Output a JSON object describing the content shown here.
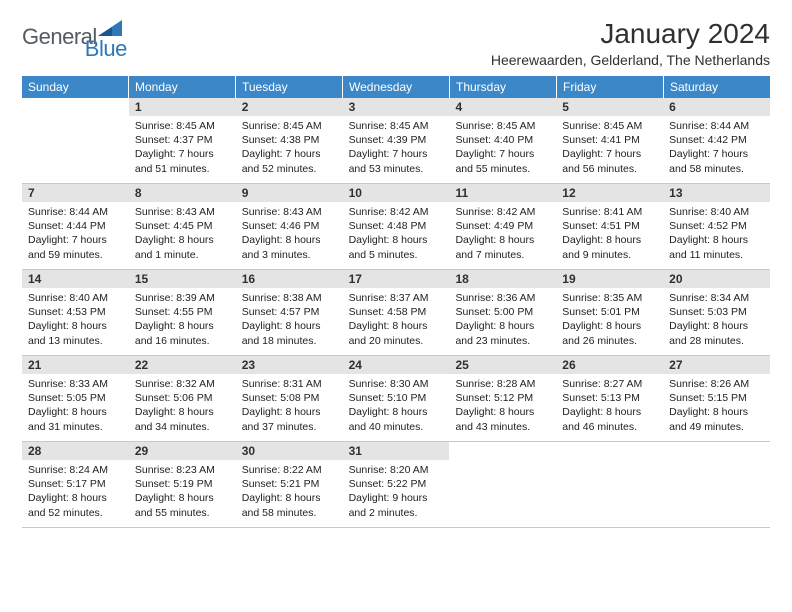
{
  "logo": {
    "text1": "General",
    "text2": "Blue"
  },
  "title": "January 2024",
  "subtitle": "Heerewaarden, Gelderland, The Netherlands",
  "colors": {
    "header_bg": "#3c87c7",
    "header_text": "#ffffff",
    "daynum_bg": "#e4e4e4",
    "text": "#303030",
    "border": "#c9c9c9",
    "logo_grey": "#555a5e",
    "logo_blue": "#2f78b8"
  },
  "day_headers": [
    "Sunday",
    "Monday",
    "Tuesday",
    "Wednesday",
    "Thursday",
    "Friday",
    "Saturday"
  ],
  "weeks": [
    [
      {
        "day": "",
        "sunrise": "",
        "sunset": "",
        "daylight": ""
      },
      {
        "day": "1",
        "sunrise": "Sunrise: 8:45 AM",
        "sunset": "Sunset: 4:37 PM",
        "daylight": "Daylight: 7 hours and 51 minutes."
      },
      {
        "day": "2",
        "sunrise": "Sunrise: 8:45 AM",
        "sunset": "Sunset: 4:38 PM",
        "daylight": "Daylight: 7 hours and 52 minutes."
      },
      {
        "day": "3",
        "sunrise": "Sunrise: 8:45 AM",
        "sunset": "Sunset: 4:39 PM",
        "daylight": "Daylight: 7 hours and 53 minutes."
      },
      {
        "day": "4",
        "sunrise": "Sunrise: 8:45 AM",
        "sunset": "Sunset: 4:40 PM",
        "daylight": "Daylight: 7 hours and 55 minutes."
      },
      {
        "day": "5",
        "sunrise": "Sunrise: 8:45 AM",
        "sunset": "Sunset: 4:41 PM",
        "daylight": "Daylight: 7 hours and 56 minutes."
      },
      {
        "day": "6",
        "sunrise": "Sunrise: 8:44 AM",
        "sunset": "Sunset: 4:42 PM",
        "daylight": "Daylight: 7 hours and 58 minutes."
      }
    ],
    [
      {
        "day": "7",
        "sunrise": "Sunrise: 8:44 AM",
        "sunset": "Sunset: 4:44 PM",
        "daylight": "Daylight: 7 hours and 59 minutes."
      },
      {
        "day": "8",
        "sunrise": "Sunrise: 8:43 AM",
        "sunset": "Sunset: 4:45 PM",
        "daylight": "Daylight: 8 hours and 1 minute."
      },
      {
        "day": "9",
        "sunrise": "Sunrise: 8:43 AM",
        "sunset": "Sunset: 4:46 PM",
        "daylight": "Daylight: 8 hours and 3 minutes."
      },
      {
        "day": "10",
        "sunrise": "Sunrise: 8:42 AM",
        "sunset": "Sunset: 4:48 PM",
        "daylight": "Daylight: 8 hours and 5 minutes."
      },
      {
        "day": "11",
        "sunrise": "Sunrise: 8:42 AM",
        "sunset": "Sunset: 4:49 PM",
        "daylight": "Daylight: 8 hours and 7 minutes."
      },
      {
        "day": "12",
        "sunrise": "Sunrise: 8:41 AM",
        "sunset": "Sunset: 4:51 PM",
        "daylight": "Daylight: 8 hours and 9 minutes."
      },
      {
        "day": "13",
        "sunrise": "Sunrise: 8:40 AM",
        "sunset": "Sunset: 4:52 PM",
        "daylight": "Daylight: 8 hours and 11 minutes."
      }
    ],
    [
      {
        "day": "14",
        "sunrise": "Sunrise: 8:40 AM",
        "sunset": "Sunset: 4:53 PM",
        "daylight": "Daylight: 8 hours and 13 minutes."
      },
      {
        "day": "15",
        "sunrise": "Sunrise: 8:39 AM",
        "sunset": "Sunset: 4:55 PM",
        "daylight": "Daylight: 8 hours and 16 minutes."
      },
      {
        "day": "16",
        "sunrise": "Sunrise: 8:38 AM",
        "sunset": "Sunset: 4:57 PM",
        "daylight": "Daylight: 8 hours and 18 minutes."
      },
      {
        "day": "17",
        "sunrise": "Sunrise: 8:37 AM",
        "sunset": "Sunset: 4:58 PM",
        "daylight": "Daylight: 8 hours and 20 minutes."
      },
      {
        "day": "18",
        "sunrise": "Sunrise: 8:36 AM",
        "sunset": "Sunset: 5:00 PM",
        "daylight": "Daylight: 8 hours and 23 minutes."
      },
      {
        "day": "19",
        "sunrise": "Sunrise: 8:35 AM",
        "sunset": "Sunset: 5:01 PM",
        "daylight": "Daylight: 8 hours and 26 minutes."
      },
      {
        "day": "20",
        "sunrise": "Sunrise: 8:34 AM",
        "sunset": "Sunset: 5:03 PM",
        "daylight": "Daylight: 8 hours and 28 minutes."
      }
    ],
    [
      {
        "day": "21",
        "sunrise": "Sunrise: 8:33 AM",
        "sunset": "Sunset: 5:05 PM",
        "daylight": "Daylight: 8 hours and 31 minutes."
      },
      {
        "day": "22",
        "sunrise": "Sunrise: 8:32 AM",
        "sunset": "Sunset: 5:06 PM",
        "daylight": "Daylight: 8 hours and 34 minutes."
      },
      {
        "day": "23",
        "sunrise": "Sunrise: 8:31 AM",
        "sunset": "Sunset: 5:08 PM",
        "daylight": "Daylight: 8 hours and 37 minutes."
      },
      {
        "day": "24",
        "sunrise": "Sunrise: 8:30 AM",
        "sunset": "Sunset: 5:10 PM",
        "daylight": "Daylight: 8 hours and 40 minutes."
      },
      {
        "day": "25",
        "sunrise": "Sunrise: 8:28 AM",
        "sunset": "Sunset: 5:12 PM",
        "daylight": "Daylight: 8 hours and 43 minutes."
      },
      {
        "day": "26",
        "sunrise": "Sunrise: 8:27 AM",
        "sunset": "Sunset: 5:13 PM",
        "daylight": "Daylight: 8 hours and 46 minutes."
      },
      {
        "day": "27",
        "sunrise": "Sunrise: 8:26 AM",
        "sunset": "Sunset: 5:15 PM",
        "daylight": "Daylight: 8 hours and 49 minutes."
      }
    ],
    [
      {
        "day": "28",
        "sunrise": "Sunrise: 8:24 AM",
        "sunset": "Sunset: 5:17 PM",
        "daylight": "Daylight: 8 hours and 52 minutes."
      },
      {
        "day": "29",
        "sunrise": "Sunrise: 8:23 AM",
        "sunset": "Sunset: 5:19 PM",
        "daylight": "Daylight: 8 hours and 55 minutes."
      },
      {
        "day": "30",
        "sunrise": "Sunrise: 8:22 AM",
        "sunset": "Sunset: 5:21 PM",
        "daylight": "Daylight: 8 hours and 58 minutes."
      },
      {
        "day": "31",
        "sunrise": "Sunrise: 8:20 AM",
        "sunset": "Sunset: 5:22 PM",
        "daylight": "Daylight: 9 hours and 2 minutes."
      },
      {
        "day": "",
        "sunrise": "",
        "sunset": "",
        "daylight": ""
      },
      {
        "day": "",
        "sunrise": "",
        "sunset": "",
        "daylight": ""
      },
      {
        "day": "",
        "sunrise": "",
        "sunset": "",
        "daylight": ""
      }
    ]
  ]
}
